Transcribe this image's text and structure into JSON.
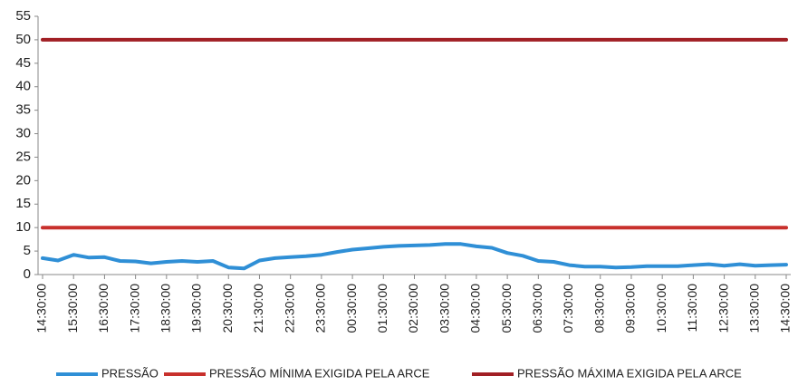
{
  "chart_data": {
    "type": "line",
    "categories": [
      "14:30:00",
      null,
      "15:30:00",
      null,
      "16:30:00",
      null,
      "17:30:00",
      null,
      "18:30:00",
      null,
      "19:30:00",
      null,
      "20:30:00",
      null,
      "21:30:00",
      null,
      "22:30:00",
      null,
      "23:30:00",
      null,
      "00:30:00",
      null,
      "01:30:00",
      null,
      "02:30:00",
      null,
      "03:30:00",
      null,
      "04:30:00",
      null,
      "05:30:00",
      null,
      "06:30:00",
      null,
      "07:30:00",
      null,
      "08:30:00",
      null,
      "09:30:00",
      null,
      "10:30:00",
      null,
      "11:30:00",
      null,
      "12:30:00",
      null,
      "13:30:00",
      null,
      "14:30:00"
    ],
    "series": [
      {
        "name": "PRESSÃO",
        "color": "#2f8fd6",
        "values": [
          3.5,
          3.0,
          4.2,
          3.6,
          3.7,
          2.9,
          2.8,
          2.4,
          2.7,
          2.9,
          2.7,
          2.9,
          1.5,
          1.3,
          3.0,
          3.5,
          3.7,
          3.9,
          4.2,
          4.8,
          5.3,
          5.6,
          5.9,
          6.1,
          6.2,
          6.3,
          6.5,
          6.5,
          6.0,
          5.7,
          4.6,
          4.0,
          2.9,
          2.7,
          2.0,
          1.7,
          1.7,
          1.5,
          1.6,
          1.8,
          1.8,
          1.8,
          2.0,
          2.2,
          1.9,
          2.2,
          1.9,
          2.0,
          2.1
        ]
      },
      {
        "name": "PRESSÃO MÍNIMA EXIGIDA PELA ARCE",
        "color": "#c8302c",
        "values": [
          10,
          10,
          10,
          10,
          10,
          10,
          10,
          10,
          10,
          10,
          10,
          10,
          10,
          10,
          10,
          10,
          10,
          10,
          10,
          10,
          10,
          10,
          10,
          10,
          10,
          10,
          10,
          10,
          10,
          10,
          10,
          10,
          10,
          10,
          10,
          10,
          10,
          10,
          10,
          10,
          10,
          10,
          10,
          10,
          10,
          10,
          10,
          10,
          10
        ]
      },
      {
        "name": "PRESSÃO MÁXIMA EXIGIDA PELA ARCE",
        "color": "#a11f24",
        "values": [
          50,
          50,
          50,
          50,
          50,
          50,
          50,
          50,
          50,
          50,
          50,
          50,
          50,
          50,
          50,
          50,
          50,
          50,
          50,
          50,
          50,
          50,
          50,
          50,
          50,
          50,
          50,
          50,
          50,
          50,
          50,
          50,
          50,
          50,
          50,
          50,
          50,
          50,
          50,
          50,
          50,
          50,
          50,
          50,
          50,
          50,
          50,
          50,
          50
        ]
      }
    ],
    "ylim": [
      0,
      55
    ],
    "yticks": [
      0,
      5,
      10,
      15,
      20,
      25,
      30,
      35,
      40,
      45,
      50,
      55
    ],
    "grid": false
  }
}
